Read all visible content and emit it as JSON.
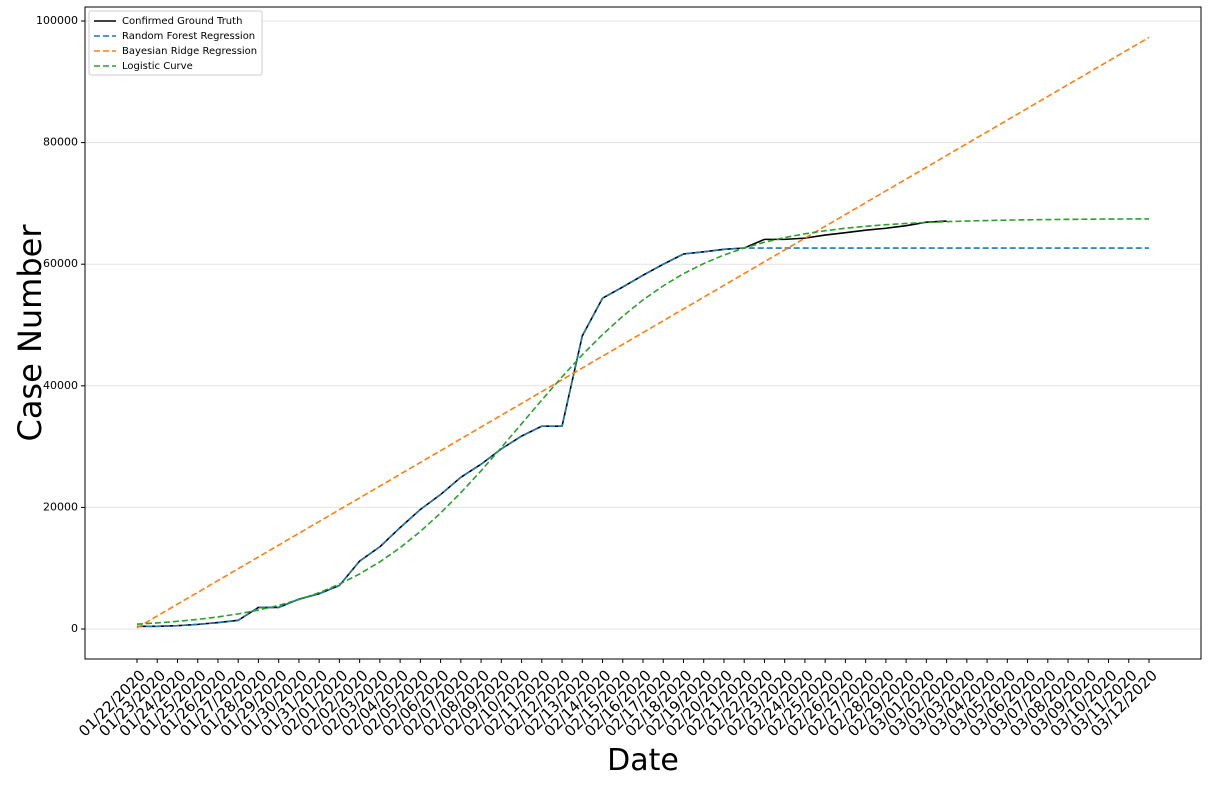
{
  "chart_data": {
    "type": "line",
    "xlabel": "Date",
    "ylabel": "Case Number",
    "categories": [
      "01/22/2020",
      "01/23/2020",
      "01/24/2020",
      "01/25/2020",
      "01/26/2020",
      "01/27/2020",
      "01/28/2020",
      "01/29/2020",
      "01/30/2020",
      "01/31/2020",
      "02/01/2020",
      "02/02/2020",
      "02/03/2020",
      "02/04/2020",
      "02/05/2020",
      "02/06/2020",
      "02/07/2020",
      "02/08/2020",
      "02/09/2020",
      "02/10/2020",
      "02/11/2020",
      "02/12/2020",
      "02/13/2020",
      "02/14/2020",
      "02/15/2020",
      "02/16/2020",
      "02/17/2020",
      "02/18/2020",
      "02/19/2020",
      "02/20/2020",
      "02/21/2020",
      "02/22/2020",
      "02/23/2020",
      "02/24/2020",
      "02/25/2020",
      "02/26/2020",
      "02/27/2020",
      "02/28/2020",
      "02/29/2020",
      "03/01/2020",
      "03/02/2020",
      "03/03/2020",
      "03/04/2020",
      "03/05/2020",
      "03/06/2020",
      "03/07/2020",
      "03/08/2020",
      "03/09/2020",
      "03/10/2020",
      "03/11/2020",
      "03/12/2020"
    ],
    "series": [
      {
        "name": "Confirmed Ground Truth",
        "color": "#000000",
        "linestyle": "solid",
        "values": [
          444,
          444,
          549,
          761,
          1058,
          1423,
          3554,
          3554,
          4903,
          5806,
          7153,
          11177,
          13522,
          16678,
          19665,
          22112,
          24953,
          27100,
          29631,
          31728,
          33366,
          33366,
          48206,
          54406,
          56249,
          58182,
          59989,
          61682,
          62031,
          62442,
          62662,
          64084,
          64084,
          64287,
          64786,
          65187,
          65596,
          65914,
          66337,
          66907,
          67103,
          null,
          null,
          null,
          null,
          null,
          null,
          null,
          null,
          null,
          null
        ]
      },
      {
        "name": "Random Forest Regression",
        "color": "#1f77b4",
        "linestyle": "dashed",
        "values": [
          444,
          444,
          549,
          761,
          1058,
          1423,
          3554,
          3554,
          4903,
          5806,
          7153,
          11177,
          13522,
          16678,
          19665,
          22112,
          24953,
          27100,
          29631,
          31728,
          33366,
          33366,
          48206,
          54406,
          56249,
          58182,
          59989,
          61682,
          62031,
          62442,
          62662,
          62662,
          62662,
          62662,
          62662,
          62662,
          62662,
          62662,
          62662,
          62662,
          62662,
          62662,
          62662,
          62662,
          62662,
          62662,
          62662,
          62662,
          62662,
          62662,
          62662
        ]
      },
      {
        "name": "Bayesian Ridge Regression",
        "color": "#ff7f0e",
        "linestyle": "dashed",
        "values": [
          200,
          2142,
          4084,
          6026,
          7968,
          9910,
          11852,
          13794,
          15736,
          17678,
          19620,
          21562,
          23504,
          25446,
          27388,
          29330,
          31272,
          33214,
          35156,
          37098,
          39040,
          40982,
          42924,
          44866,
          46808,
          48750,
          50692,
          52634,
          54576,
          56518,
          58460,
          60402,
          62344,
          64286,
          66228,
          68170,
          70112,
          72054,
          73996,
          75938,
          77880,
          79822,
          81764,
          83706,
          85648,
          87590,
          89532,
          91474,
          93416,
          95358,
          97300
        ]
      },
      {
        "name": "Logistic Curve",
        "color": "#2ca02c",
        "linestyle": "dashed",
        "values": [
          797,
          1003,
          1262,
          1582,
          1986,
          2486,
          3114,
          3884,
          4832,
          5984,
          7385,
          9060,
          11047,
          13366,
          16049,
          19068,
          22427,
          26022,
          29841,
          33750,
          37667,
          41462,
          45090,
          48422,
          51448,
          54130,
          56438,
          58442,
          60107,
          61510,
          62662,
          63613,
          64384,
          65004,
          65509,
          65911,
          66235,
          66496,
          66700,
          66865,
          66997,
          67100,
          67183,
          67249,
          67301,
          67342,
          67375,
          67401,
          67421,
          67437,
          67451
        ]
      }
    ],
    "ylim": [
      -4934,
      102303
    ],
    "yticks": [
      0,
      20000,
      40000,
      60000,
      80000,
      100000
    ],
    "grid": true,
    "legend": "upper left"
  }
}
